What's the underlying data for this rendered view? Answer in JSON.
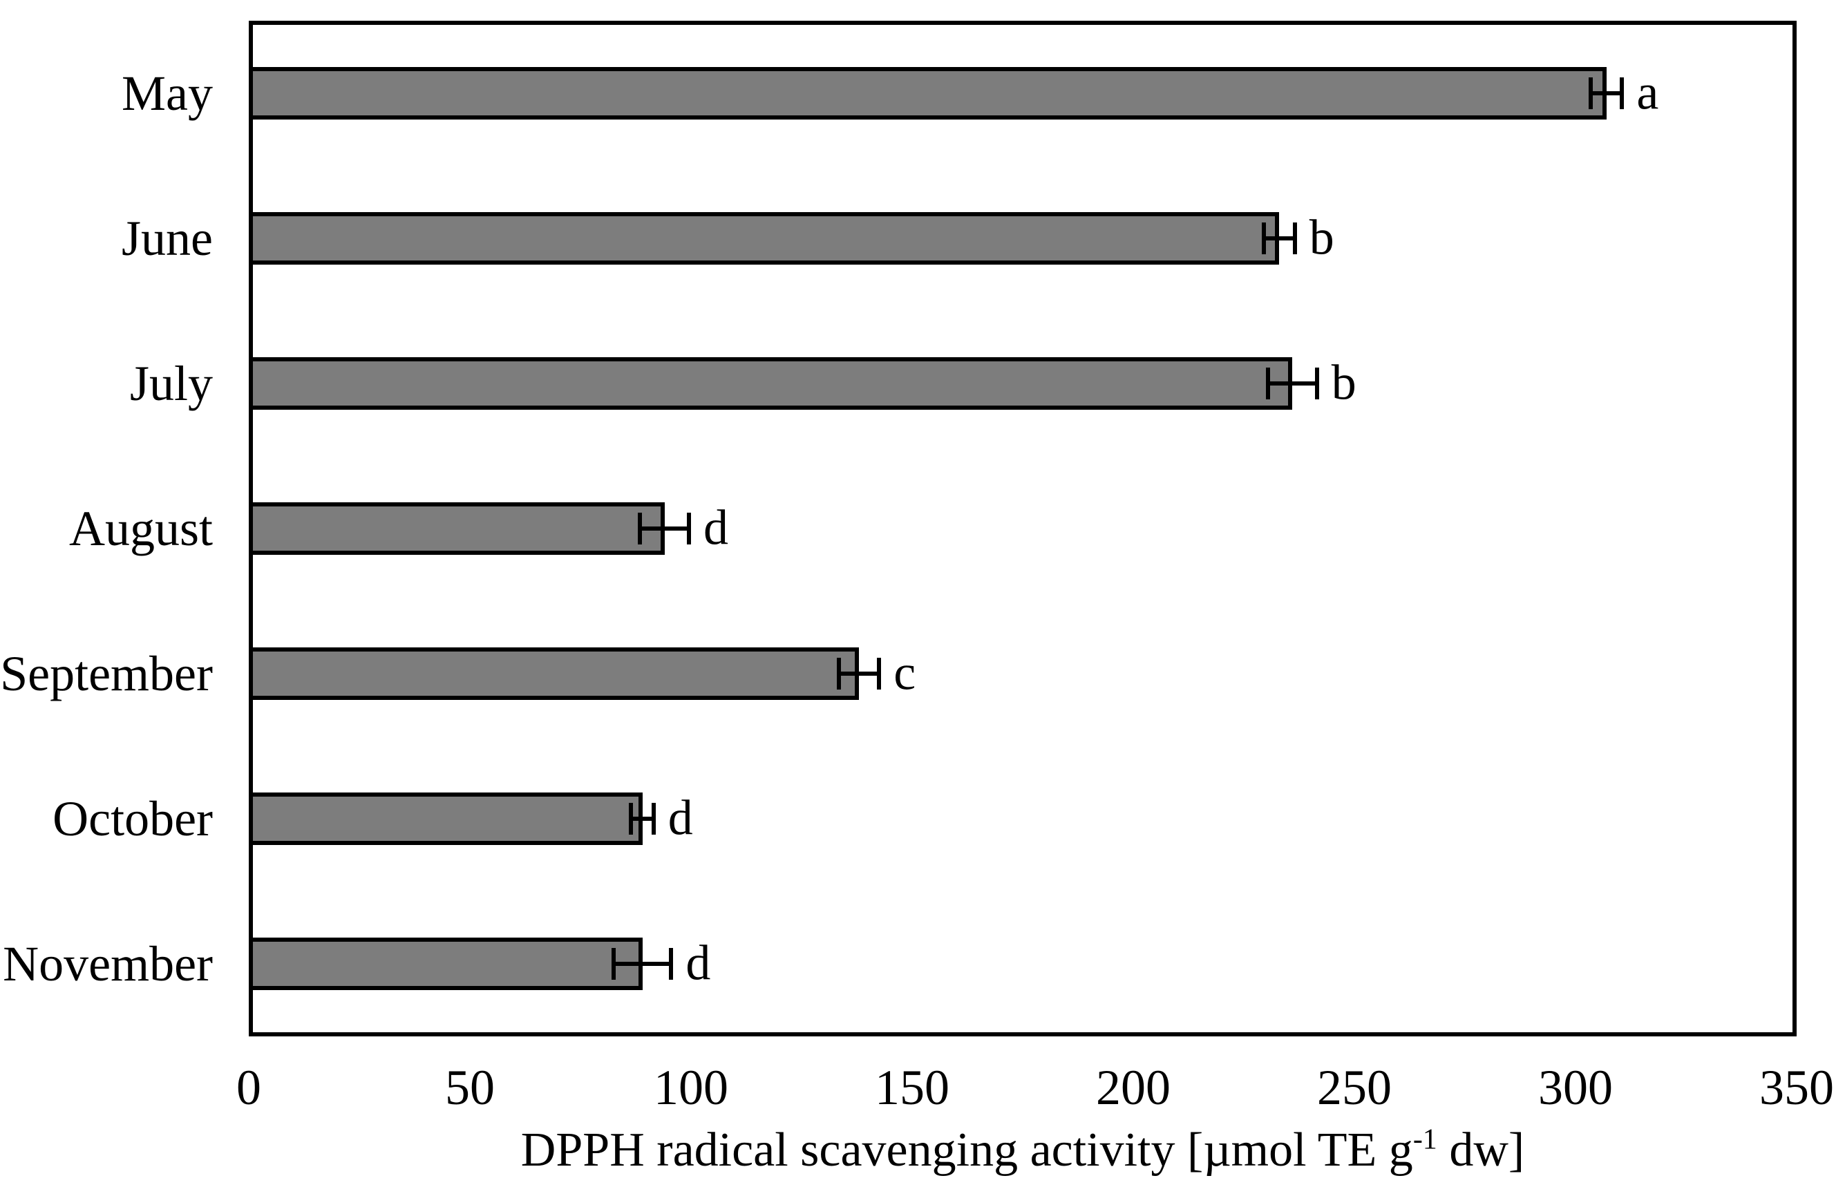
{
  "chart_data": {
    "type": "bar",
    "orientation": "horizontal",
    "title": "",
    "categories": [
      "May",
      "June",
      "July",
      "August",
      "September",
      "October",
      "November"
    ],
    "series": [
      {
        "name": "DPPH radical scavenging activity",
        "values": [
          307,
          233,
          236,
          94,
          138,
          89,
          89
        ],
        "errors": [
          4,
          4,
          6,
          6,
          5,
          3,
          7
        ],
        "significance_letters": [
          "a",
          "b",
          "b",
          "d",
          "c",
          "d",
          "d"
        ]
      }
    ],
    "xlabel": "DPPH radical scavenging activity [µmol TE g-1 dw]",
    "xlabel_parts": {
      "before": "DPPH radical scavenging activity [µmol TE g",
      "sup": "-1",
      "after": " dw]"
    },
    "ylabel": "",
    "xlim": [
      0,
      350
    ],
    "xticks": [
      0,
      50,
      100,
      150,
      200,
      250,
      300,
      350
    ],
    "grid": false,
    "legend_position": "none",
    "colors": {
      "bar_fill": "#7d7d7d",
      "bar_border": "#000000",
      "axis_border": "#000000",
      "background": "#ffffff",
      "text": "#000000"
    }
  }
}
